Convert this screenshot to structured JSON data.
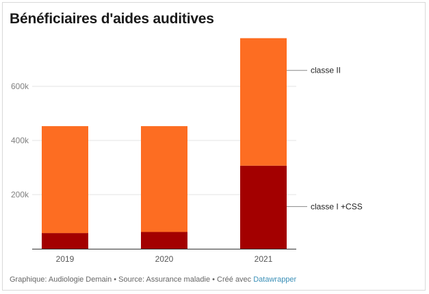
{
  "title": "Bénéficiaires d'aides auditives",
  "footer": {
    "text": "Graphique: Audiologie Demain • Source: Assurance maladie • Créé avec ",
    "link_text": "Datawrapper"
  },
  "chart_data": {
    "type": "bar",
    "stacked": true,
    "categories": [
      "2019",
      "2020",
      "2021"
    ],
    "series": [
      {
        "name": "classe I +CSS",
        "color": "#a30000",
        "values": [
          58000,
          62000,
          307000
        ]
      },
      {
        "name": "classe II",
        "color": "#fd6d22",
        "values": [
          395000,
          391000,
          471000
        ]
      }
    ],
    "ylim": [
      0,
      800000
    ],
    "yticks": [
      200000,
      400000,
      600000
    ],
    "ytick_labels": [
      "200k",
      "400k",
      "600k"
    ],
    "grid": true,
    "legend": "direct labels right of last bar",
    "xlabel": "",
    "ylabel": ""
  }
}
